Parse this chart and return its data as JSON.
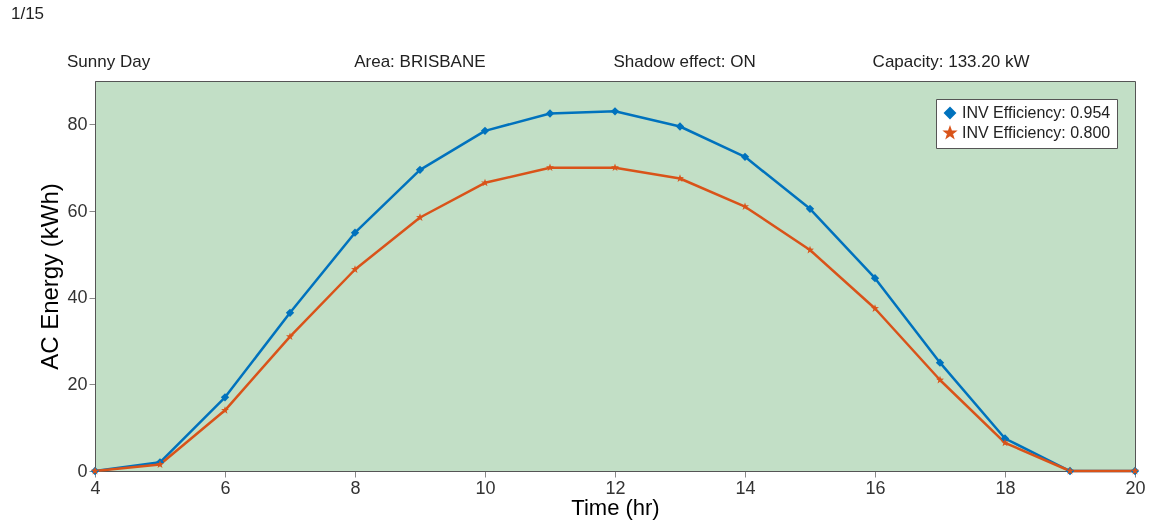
{
  "chart_data": {
    "type": "line",
    "title": "1/15",
    "annotations": [
      "Sunny Day",
      "Area: BRISBANE",
      "Shadow effect: ON",
      "Capacity: 133.20 kW"
    ],
    "xlabel": "Time (hr)",
    "ylabel": "AC Energy (kWh)",
    "x": [
      4,
      5,
      6,
      7,
      8,
      9,
      10,
      11,
      12,
      13,
      14,
      15,
      16,
      17,
      18,
      19,
      20
    ],
    "series": [
      {
        "name": "INV Efficiency: 0.954",
        "color": "#0072bd",
        "marker": "diamond",
        "values": [
          0,
          2,
          17,
          36.5,
          55,
          69.5,
          78.5,
          82.5,
          83,
          79.5,
          72.5,
          60.5,
          44.5,
          25,
          7.5,
          0,
          0
        ]
      },
      {
        "name": "INV Efficiency: 0.800",
        "color": "#d95319",
        "marker": "star",
        "values": [
          0,
          1.5,
          14,
          31,
          46.5,
          58.5,
          66.5,
          70,
          70,
          67.5,
          61,
          51,
          37.5,
          21,
          6.5,
          0,
          0
        ]
      }
    ],
    "xlim": [
      4,
      20
    ],
    "ylim": [
      0,
      90
    ],
    "xticks": [
      4,
      6,
      8,
      10,
      12,
      14,
      16,
      18,
      20
    ],
    "yticks": [
      0,
      20,
      40,
      60,
      80
    ],
    "grid": false,
    "legend": "top right",
    "line_style": "solid"
  }
}
